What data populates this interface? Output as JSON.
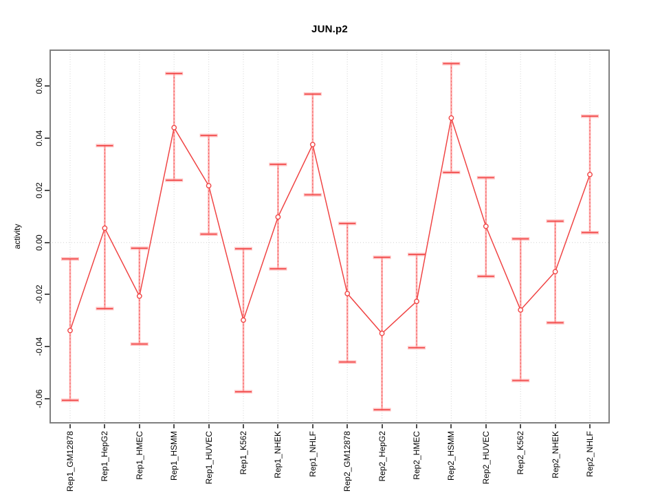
{
  "chart_data": {
    "type": "line",
    "title": "JUN.p2",
    "xlabel": "",
    "ylabel": "activity",
    "categories": [
      "Rep1_GM12878",
      "Rep1_HepG2",
      "Rep1_HMEC",
      "Rep1_HSMM",
      "Rep1_HUVEC",
      "Rep1_K562",
      "Rep1_NHEK",
      "Rep1_NHLF",
      "Rep2_GM12878",
      "Rep2_HepG2",
      "Rep2_HMEC",
      "Rep2_HSMM",
      "Rep2_HUVEC",
      "Rep2_K562",
      "Rep2_NHEK",
      "Rep2_NHLF"
    ],
    "series": [
      {
        "name": "activity",
        "values": [
          -0.0338,
          0.0055,
          -0.0206,
          0.0441,
          0.0218,
          -0.0298,
          0.0098,
          0.0376,
          -0.0196,
          -0.0349,
          -0.0226,
          0.0478,
          0.0062,
          -0.0259,
          -0.0112,
          0.0261
        ],
        "error_low": [
          -0.0606,
          -0.0254,
          -0.039,
          0.0239,
          0.0032,
          -0.0573,
          -0.0101,
          0.0183,
          -0.0459,
          -0.0642,
          -0.0404,
          0.0269,
          -0.013,
          -0.053,
          -0.0308,
          0.0038
        ],
        "error_high": [
          -0.0063,
          0.0372,
          -0.0022,
          0.0649,
          0.0411,
          -0.0024,
          0.03,
          0.057,
          0.0073,
          -0.0057,
          -0.0046,
          0.0687,
          0.0249,
          0.0014,
          0.0082,
          0.0485
        ]
      }
    ],
    "ylim": [
      -0.0695,
      0.0741
    ],
    "ytick_values": [
      0.06,
      0.04,
      0.02,
      0.0,
      -0.02,
      -0.04,
      -0.06
    ],
    "ytick_labels": [
      "0.06",
      "0.04",
      "0.02",
      "0.00",
      "-0.02",
      "-0.04",
      "-0.06"
    ],
    "grid": {
      "vertical": "dotted line at every category",
      "horizontal": "dotted line at y=0 only"
    },
    "legend": "none",
    "marker": "open-circle",
    "error_bars": true
  },
  "colors": {
    "series_red": "#f04444",
    "error_bar_light": "#ff9b9b",
    "grid_gray": "#d9d9d9",
    "box_gray": "#7f7f7f",
    "tick_dark": "#4d4d4d",
    "text": "#000000"
  }
}
